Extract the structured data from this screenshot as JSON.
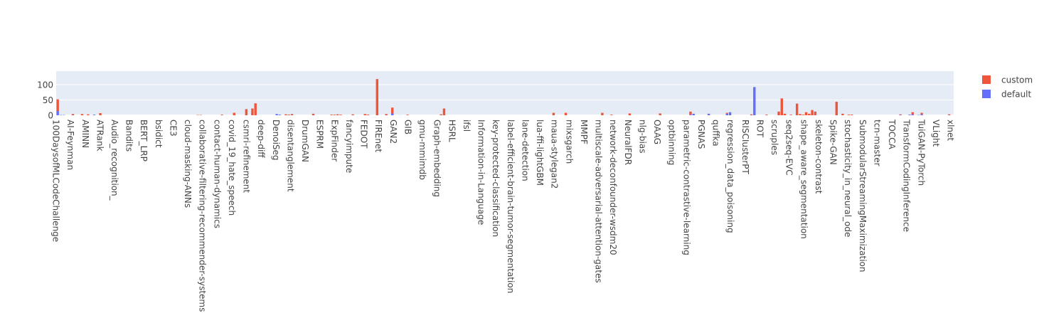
{
  "chart_data": {
    "type": "bar",
    "barmode": "stack",
    "grid": true,
    "legend_placement": "top-right",
    "title": "",
    "xlabel": "",
    "ylabel": "",
    "ylim": [
      0,
      144
    ],
    "yticks": [
      0,
      50,
      100
    ],
    "colors": {
      "plot_bg": "#e5ecf6",
      "gridline": "#ffffff",
      "custom": "#ef553b",
      "default": "#636efa"
    },
    "tick_labels": [
      "100DaysofMLCodeChallenge",
      "AI-Feynman",
      "AMINN",
      "ATRank",
      "Audio_recognition_",
      "Bandits",
      "BERT_LRP",
      "bsidict",
      "CE3",
      "cloud-masking-ANNs",
      "collaborative-filtering-recommender-systems",
      "contact-human-dynamics",
      "covid_19_hate_speech",
      "csmri-refinement",
      "deep-diff",
      "DenoiSeg",
      "disentanglement",
      "DrumGAN",
      "ESPRM",
      "ExpFinder",
      "fancyimpute",
      "FEDOT",
      "FIREnet",
      "GAN2",
      "GIB",
      "gmu-mmimdb",
      "Graph-embedding",
      "HSRL",
      "ifsl",
      "Information-in-Language",
      "key-protected-classification",
      "label-efficient-brain-tumor-segmentation",
      "lane-detection",
      "lua-ffi-lightGBM",
      "maua-stylegan2",
      "mixsgarch",
      "MMPF",
      "multiscale-adversarial-attention-gates",
      "network-deconfounder-wsdm20",
      "NeuralFDR",
      "nlg-bias",
      "OAAG",
      "optbinning",
      "parametric-contrastive-learning",
      "PGNAS",
      "quffka",
      "regression_data_poisoning",
      "RISCIusterPT",
      "ROT",
      "scruples",
      "seq2seq-EVC",
      "shape_aware_segmentation",
      "skeleton-contrast",
      "Spike-GAN",
      "stochasticity_in_neural_ode",
      "SubmodularStreamingMaximization",
      "tcn-master",
      "TOCCA",
      "TransformCodingInference",
      "TuiGAN-PyTorch",
      "VLight",
      "xlnet"
    ],
    "legend": [
      {
        "key": "custom",
        "label": "custom"
      },
      {
        "key": "default",
        "label": "default"
      }
    ],
    "series": [
      {
        "key": "default",
        "values": [
          14,
          1,
          1,
          0,
          0,
          0,
          0,
          0,
          0,
          0,
          0,
          0,
          2,
          0,
          0,
          0,
          0,
          0,
          0,
          0,
          0,
          0,
          0,
          0,
          0,
          0,
          0,
          0,
          0,
          0,
          0,
          0,
          0,
          0,
          0,
          0,
          0,
          0,
          0,
          0,
          0,
          0,
          0,
          0,
          0,
          0,
          0,
          0,
          0,
          0,
          0,
          0,
          0,
          0,
          0,
          0,
          0,
          0,
          0,
          0,
          0,
          0,
          0,
          0,
          0,
          0,
          0,
          0,
          0,
          0,
          0,
          0,
          4,
          2,
          0,
          0,
          0,
          0,
          0,
          0,
          0,
          0,
          0,
          0,
          0,
          0,
          0,
          0,
          0,
          0,
          0,
          0,
          0,
          0,
          0,
          0,
          0,
          0,
          0,
          0,
          0,
          0,
          0,
          0,
          0,
          0,
          0,
          0,
          0,
          0,
          6,
          0,
          0,
          0,
          0,
          0,
          0,
          0,
          0,
          0,
          0,
          0,
          0,
          0,
          0,
          0,
          0,
          0,
          0,
          0,
          0,
          0,
          0,
          0,
          0,
          0,
          0,
          0,
          0,
          0,
          0,
          0,
          0,
          0,
          0,
          0,
          0,
          0,
          0,
          0,
          0,
          0,
          0,
          0,
          0,
          0,
          0,
          0,
          0,
          0,
          0,
          0,
          0,
          0,
          0,
          0,
          0,
          0,
          0,
          0,
          0,
          0,
          0,
          0,
          0,
          0,
          0,
          0,
          0,
          0,
          0,
          0,
          0,
          0,
          0,
          0,
          0,
          0,
          0,
          0,
          0,
          0,
          0,
          0,
          0,
          0,
          0,
          0,
          0,
          0,
          0,
          0,
          0,
          0,
          0,
          0,
          0,
          0,
          2,
          5,
          0,
          0,
          0,
          0,
          5,
          0,
          0,
          0,
          0,
          0,
          5,
          10,
          0,
          0,
          0,
          0,
          0,
          0,
          0,
          92,
          0,
          0,
          0,
          0,
          0,
          0,
          0,
          0,
          0,
          0,
          0,
          0,
          0,
          0,
          0,
          0,
          0,
          0,
          0,
          0,
          0,
          0,
          0,
          0,
          0,
          0,
          0,
          0,
          0,
          0,
          0,
          0,
          0,
          0,
          0,
          0,
          0,
          0,
          0,
          0,
          0,
          0,
          0,
          0,
          0,
          0,
          0,
          1,
          0,
          0,
          2,
          3,
          0,
          1,
          3,
          0,
          0,
          0,
          0,
          0,
          0,
          0,
          0,
          0,
          0
        ]
      },
      {
        "key": "custom",
        "values": [
          38,
          0,
          0,
          0,
          0,
          4,
          0,
          0,
          4,
          0,
          3,
          0,
          0,
          0,
          7,
          0,
          0,
          0,
          0,
          0,
          0,
          0,
          0,
          0,
          0,
          0,
          0,
          0,
          0,
          0,
          0,
          0,
          0,
          0,
          0,
          0,
          0,
          0,
          0,
          0,
          0,
          0,
          0,
          0,
          0,
          0,
          1,
          1,
          0,
          0,
          0,
          0,
          0,
          0,
          2,
          0,
          0,
          0,
          8,
          0,
          0,
          0,
          20,
          0,
          22,
          39,
          0,
          0,
          0,
          0,
          0,
          0,
          0,
          0,
          0,
          3,
          2,
          4,
          0,
          0,
          0,
          0,
          0,
          0,
          5,
          0,
          0,
          0,
          0,
          0,
          2,
          2,
          3,
          2,
          0,
          0,
          0,
          3,
          0,
          0,
          0,
          4,
          2,
          0,
          0,
          118,
          0,
          0,
          4,
          0,
          19,
          0,
          0,
          0,
          0,
          2,
          0,
          0,
          0,
          0,
          0,
          0,
          0,
          0,
          0,
          0,
          3,
          22,
          0,
          0,
          0,
          0,
          0,
          0,
          0,
          0,
          0,
          0,
          0,
          0,
          0,
          0,
          0,
          0,
          0,
          0,
          0,
          0,
          0,
          0,
          0,
          0,
          0,
          0,
          0,
          0,
          0,
          0,
          0,
          0,
          0,
          0,
          0,
          8,
          0,
          0,
          0,
          8,
          0,
          0,
          0,
          0,
          0,
          0,
          0,
          0,
          0,
          0,
          0,
          8,
          0,
          0,
          2,
          0,
          0,
          0,
          0,
          0,
          6,
          0,
          0,
          0,
          0,
          0,
          0,
          0,
          0,
          0,
          6,
          0,
          0,
          0,
          0,
          0,
          0,
          0,
          0,
          0,
          10,
          0,
          0,
          0,
          0,
          0,
          0,
          0,
          0,
          0,
          0,
          0,
          3,
          0,
          0,
          0,
          0,
          0,
          0,
          0,
          3,
          0,
          0,
          0,
          0,
          2,
          0,
          0,
          0,
          12,
          55,
          5,
          0,
          2,
          0,
          38,
          4,
          2,
          10,
          5,
          17,
          12,
          0,
          0,
          0,
          0,
          0,
          0,
          44,
          0,
          5,
          0,
          2,
          2,
          0,
          0,
          0,
          0,
          0,
          0,
          0,
          0,
          0,
          0,
          0,
          0,
          0,
          0,
          0,
          2,
          0,
          0,
          0,
          7,
          0,
          0,
          5,
          0,
          0,
          0,
          0,
          0,
          0,
          0,
          0,
          3,
          0,
          0,
          0,
          4,
          0,
          0,
          2,
          7,
          10,
          11,
          3,
          3,
          5,
          3,
          2,
          2,
          0,
          0,
          0,
          0,
          0,
          0,
          0,
          0,
          4
        ]
      }
    ]
  }
}
